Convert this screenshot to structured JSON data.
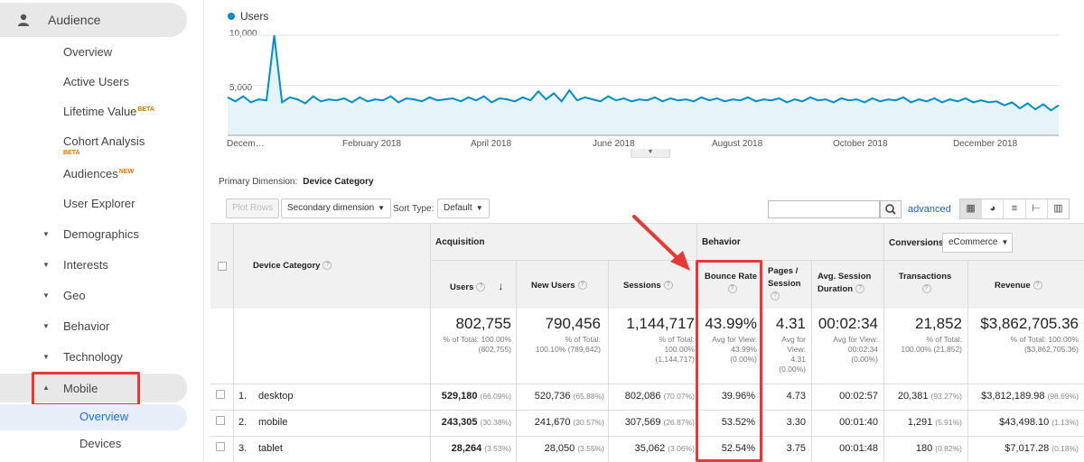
{
  "sidebar": {
    "header": "Audience",
    "items": [
      {
        "label": "Overview"
      },
      {
        "label": "Active Users"
      },
      {
        "label": "Lifetime Value",
        "badge": "BETA"
      },
      {
        "label": "Cohort Analysis",
        "badge": "BETA"
      },
      {
        "label": "Audiences",
        "badge": "NEW"
      },
      {
        "label": "User Explorer"
      },
      {
        "label": "Demographics"
      },
      {
        "label": "Interests"
      },
      {
        "label": "Geo"
      },
      {
        "label": "Behavior"
      },
      {
        "label": "Technology"
      },
      {
        "label": "Mobile"
      }
    ],
    "mobile_sub": [
      {
        "label": "Overview"
      },
      {
        "label": "Devices"
      }
    ]
  },
  "chart": {
    "legend": "Users",
    "y_labels": [
      "10,000",
      "5,000"
    ],
    "x_labels": [
      "Decem…",
      "February 2018",
      "April 2018",
      "June 2018",
      "August 2018",
      "October 2018",
      "December 2018"
    ],
    "colors": {
      "line": "#058dc7",
      "fill": "#e6f4fa"
    }
  },
  "chart_data": {
    "type": "area",
    "title": "",
    "series": [
      {
        "name": "Users",
        "values": [
          3800,
          3400,
          3900,
          3300,
          3600,
          3500,
          10000,
          3300,
          3800,
          3600,
          3200,
          3900,
          3400,
          3600,
          3500,
          3700,
          3300,
          3800,
          3400,
          3600,
          3500,
          3900,
          3300,
          3700,
          3600,
          3400,
          3800,
          3500,
          3600,
          3700,
          3400,
          3800,
          3500,
          3900,
          3300,
          3700,
          3600,
          3400,
          3800,
          3500,
          4400,
          3600,
          4200,
          3400,
          4500,
          3500,
          3800,
          3600,
          3400,
          3900,
          3500,
          3700,
          3400,
          3600,
          3500,
          3800,
          3400,
          3700,
          3500,
          3600,
          3400,
          3800,
          3500,
          3700,
          3400,
          3600,
          3500,
          3800,
          3400,
          3600,
          3500,
          3700,
          3300,
          3600,
          3400,
          3800,
          3500,
          3600,
          3300,
          3700,
          3500,
          3600,
          3300,
          3700,
          3400,
          3600,
          3500,
          3800,
          3300,
          3600,
          3400,
          3700,
          3300,
          3600,
          3400,
          3700,
          3300,
          3500,
          3300,
          3400,
          3000,
          3300,
          2700,
          3200,
          2600,
          3100,
          2500,
          3000
        ]
      }
    ],
    "ylim": [
      0,
      11000
    ],
    "xlabel": "",
    "ylabel": "",
    "grid": true
  },
  "primary_dimension": {
    "label": "Primary Dimension:",
    "value": "Device Category"
  },
  "toolbar": {
    "plot_rows": "Plot Rows",
    "secondary_dimension": "Secondary dimension",
    "sort_type_label": "Sort Type:",
    "sort_type_value": "Default",
    "advanced": "advanced"
  },
  "table": {
    "dimension_header": "Device Category",
    "groups": {
      "acquisition": "Acquisition",
      "behavior": "Behavior",
      "conversions": "Conversions",
      "conversions_select": "eCommerce"
    },
    "columns": [
      "Users",
      "New Users",
      "Sessions",
      "Bounce Rate",
      "Pages / Session",
      "Avg. Session Duration",
      "Transactions",
      "Revenue"
    ],
    "totals": [
      {
        "value": "802,755",
        "sub1": "% of Total: 100.00%",
        "sub2": "(802,755)"
      },
      {
        "value": "790,456",
        "sub1": "% of Total:",
        "sub2": "100.10% (789,642)"
      },
      {
        "value": "1,144,717",
        "sub1": "% of Total:",
        "sub2": "100.00%",
        "sub3": "(1,144,717)"
      },
      {
        "value": "43.99%",
        "sub1": "Avg for View:",
        "sub2": "43.99%",
        "sub3": "(0.00%)"
      },
      {
        "value": "4.31",
        "sub1": "Avg for",
        "sub2": "View:",
        "sub3": "4.31",
        "sub4": "(0.00%)"
      },
      {
        "value": "00:02:34",
        "sub1": "Avg for View:",
        "sub2": "00:02:34",
        "sub3": "(0.00%)"
      },
      {
        "value": "21,852",
        "sub1": "% of Total:",
        "sub2": "100.00% (21,852)"
      },
      {
        "value": "$3,862,705.36",
        "sub1": "% of Total: 100.00%",
        "sub2": "($3,862,705.36)"
      }
    ],
    "rows": [
      {
        "num": "1.",
        "device": "desktop",
        "users": "529,180",
        "users_pct": "(66.09%)",
        "new_users": "520,736",
        "new_users_pct": "(65.88%)",
        "sessions": "802,086",
        "sessions_pct": "(70.07%)",
        "bounce": "39.96%",
        "pages": "4.73",
        "duration": "00:02:57",
        "transactions": "20,381",
        "transactions_pct": "(93.27%)",
        "revenue": "$3,812,189.98",
        "revenue_pct": "(98.69%)"
      },
      {
        "num": "2.",
        "device": "mobile",
        "users": "243,305",
        "users_pct": "(30.38%)",
        "new_users": "241,670",
        "new_users_pct": "(30.57%)",
        "sessions": "307,569",
        "sessions_pct": "(26.87%)",
        "bounce": "53.52%",
        "pages": "3.30",
        "duration": "00:01:40",
        "transactions": "1,291",
        "transactions_pct": "(5.91%)",
        "revenue": "$43,498.10",
        "revenue_pct": "(1.13%)"
      },
      {
        "num": "3.",
        "device": "tablet",
        "users": "28,264",
        "users_pct": "(3.53%)",
        "new_users": "28,050",
        "new_users_pct": "(3.55%)",
        "sessions": "35,062",
        "sessions_pct": "(3.06%)",
        "bounce": "52.54%",
        "pages": "3.75",
        "duration": "00:01:48",
        "transactions": "180",
        "transactions_pct": "(0.82%)",
        "revenue": "$7,017.28",
        "revenue_pct": "(0.18%)"
      }
    ]
  },
  "annotation_color": "#e53935"
}
